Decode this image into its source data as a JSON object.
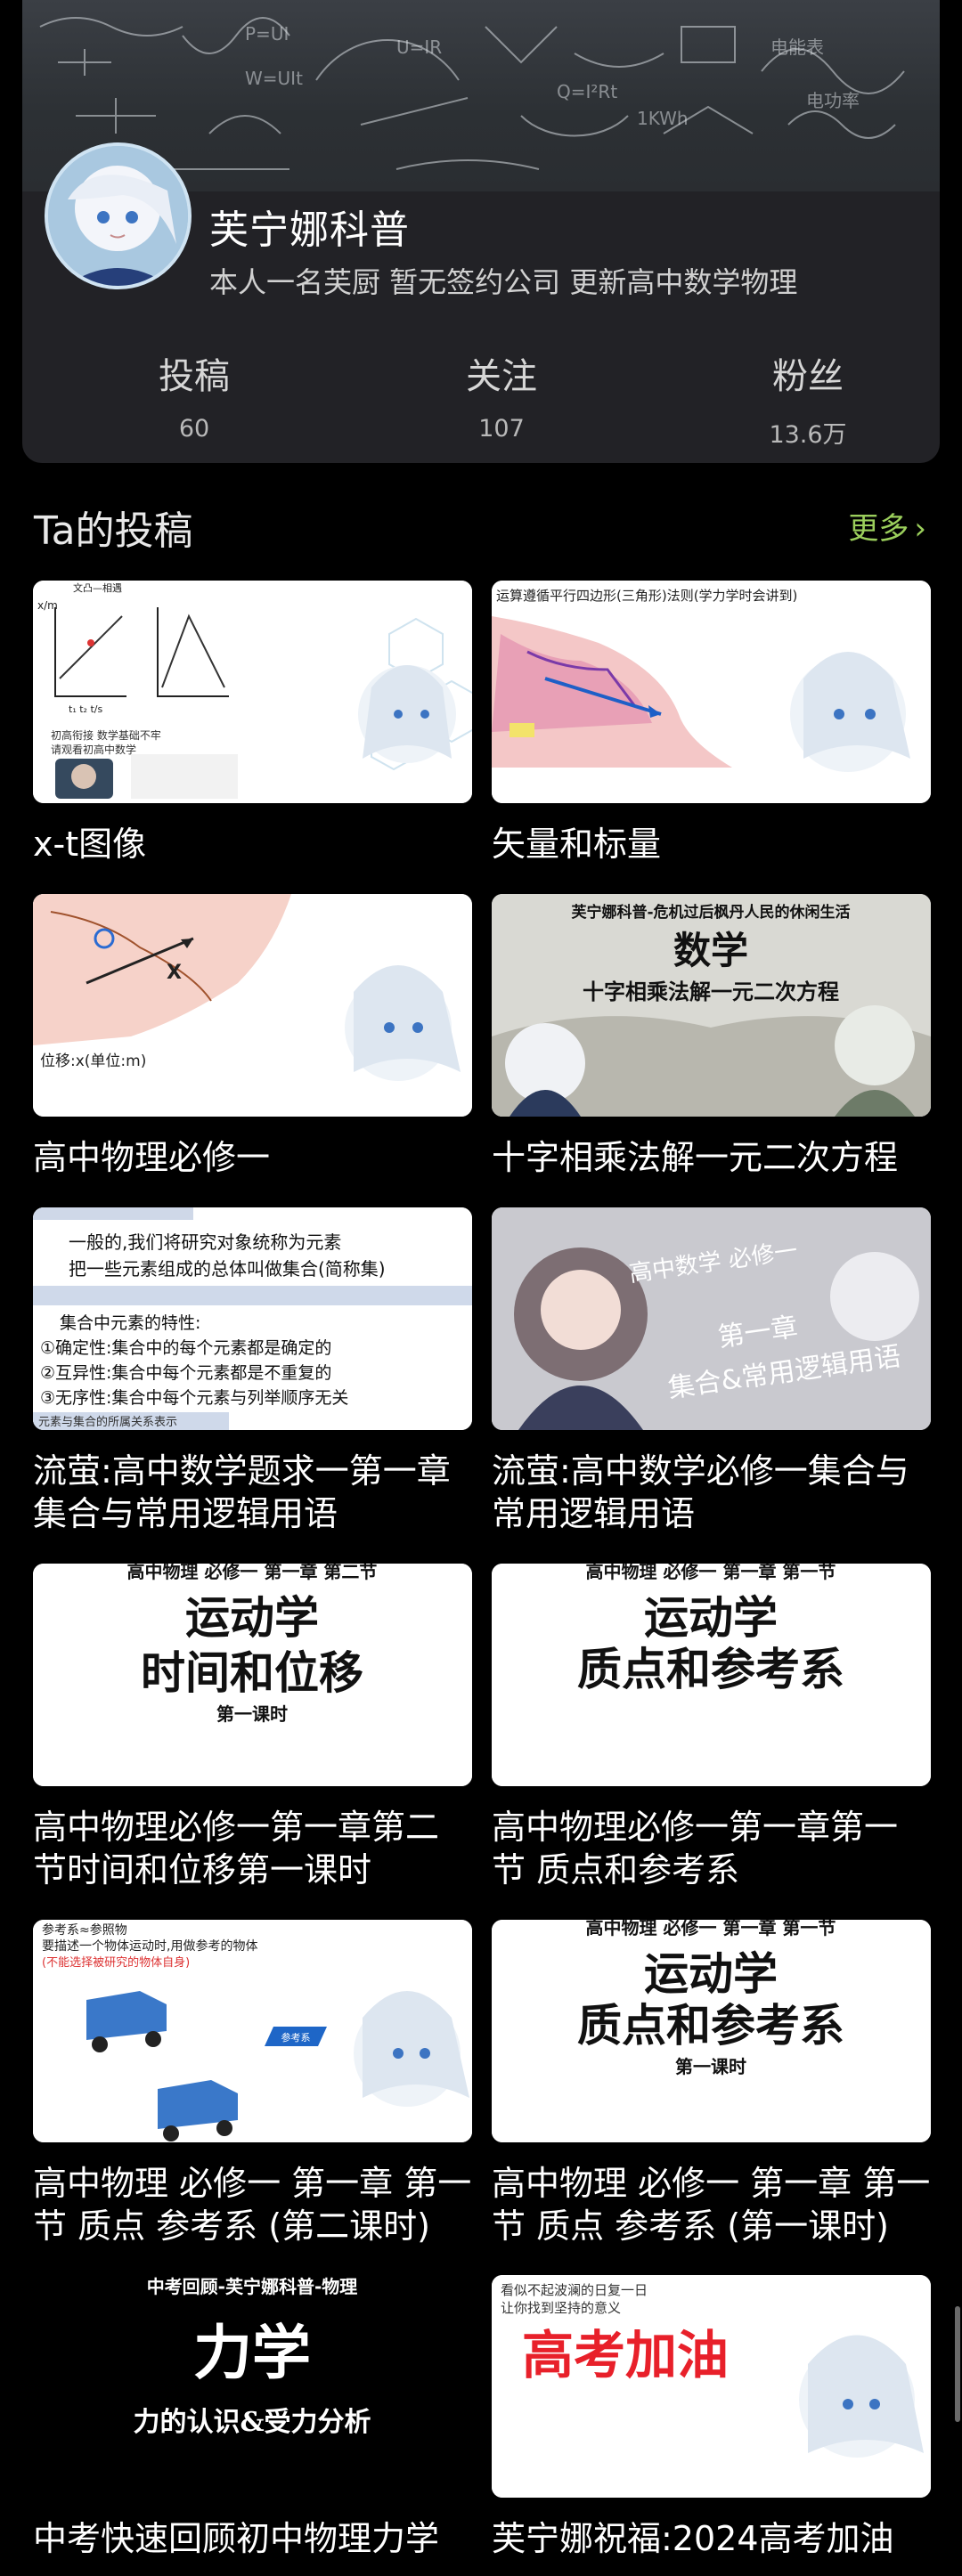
{
  "profile": {
    "name": "芙宁娜科普",
    "bio": "本人一名芙厨 暂无签约公司 更新高中数学物理",
    "stats": [
      {
        "label": "投稿",
        "value": "60"
      },
      {
        "label": "关注",
        "value": "107"
      },
      {
        "label": "粉丝",
        "value": "13.6万"
      }
    ]
  },
  "section": {
    "title": "Ta的投稿",
    "more": "更多",
    "more_icon": "chevron-right-icon"
  },
  "videos": [
    {
      "title": "x-t图像",
      "thumb": {
        "lines": [
          "文凸—相遇",
          "x/m",
          "t₁ t₂ t/s",
          "初高衔接 数学基础不牢",
          "请观看初高中数学"
        ]
      }
    },
    {
      "title": "矢量和标量",
      "thumb": {
        "lines": [
          "运算遵循平行四边形(三角形)法则(学力学时会讲到)"
        ]
      }
    },
    {
      "title": "高中物理必修一",
      "thumb": {
        "lines": [
          "位移:x(单位:m)"
        ]
      }
    },
    {
      "title": "十字相乘法解一元二次方程",
      "thumb": {
        "lines": [
          "芙宁娜科普-危机过后枫丹人民的休闲生活",
          "数学",
          "十字相乘法解一元二次方程"
        ]
      }
    },
    {
      "title": "流萤:高中数学题求一第一章集合与常用逻辑用语",
      "thumb": {
        "lines": [
          "一般的,我们将研究对象统称为元素",
          "把一些元素组成的总体叫做集合(简称集)",
          "集合中元素的特性:",
          "①确定性:集合中的每个元素都是确定的",
          "②互异性:集合中每个元素都是不重复的",
          "③无序性:集合中每个元素与列举顺序无关",
          "元素与集合的所属关系表示"
        ]
      }
    },
    {
      "title": "流萤:高中数学必修一集合与常用逻辑用语",
      "thumb": {
        "lines": [
          "高中数学  必修一",
          "第一章",
          "集合&常用逻辑用语"
        ]
      }
    },
    {
      "title": "高中物理必修一第一章第二节时间和位移第一课时",
      "thumb": {
        "lines": [
          "高中物理 必修一 第一章 第二节",
          "运动学",
          "时间和位移",
          "第一课时"
        ]
      }
    },
    {
      "title": "高中物理必修一第一章第一节 质点和参考系",
      "thumb": {
        "lines": [
          "高中物理 必修一 第一章 第一节",
          "运动学",
          "质点和参考系"
        ]
      }
    },
    {
      "title": "高中物理 必修一 第一章 第一节 质点 参考系 (第二课时)",
      "thumb": {
        "lines": [
          "参考系≈参照物",
          "要描述一个物体运动时,用做参考的物体",
          "(不能选择被研究的物体自身)",
          "参考系"
        ]
      }
    },
    {
      "title": "高中物理 必修一 第一章 第一节 质点 参考系 (第一课时)",
      "thumb": {
        "lines": [
          "高中物理 必修一 第一章 第一节",
          "运动学",
          "质点和参考系",
          "第一课时"
        ]
      }
    },
    {
      "title": "中考快速回顾初中物理力学",
      "thumb": {
        "lines": [
          "中考回顾-芙宁娜科普-物理",
          "力学",
          "力的认识&受力分析"
        ]
      }
    },
    {
      "title": "芙宁娜祝福:2024高考加油",
      "thumb": {
        "lines": [
          "看似不起波澜的日复一日",
          "让你找到坚持的意义",
          "高考加油"
        ]
      }
    }
  ],
  "colors": {
    "background": "#000000",
    "card": "#222226",
    "accent_green": "#9bcf5c",
    "highlight_yellow": "#f3c338",
    "headline_red": "#e8202a"
  }
}
